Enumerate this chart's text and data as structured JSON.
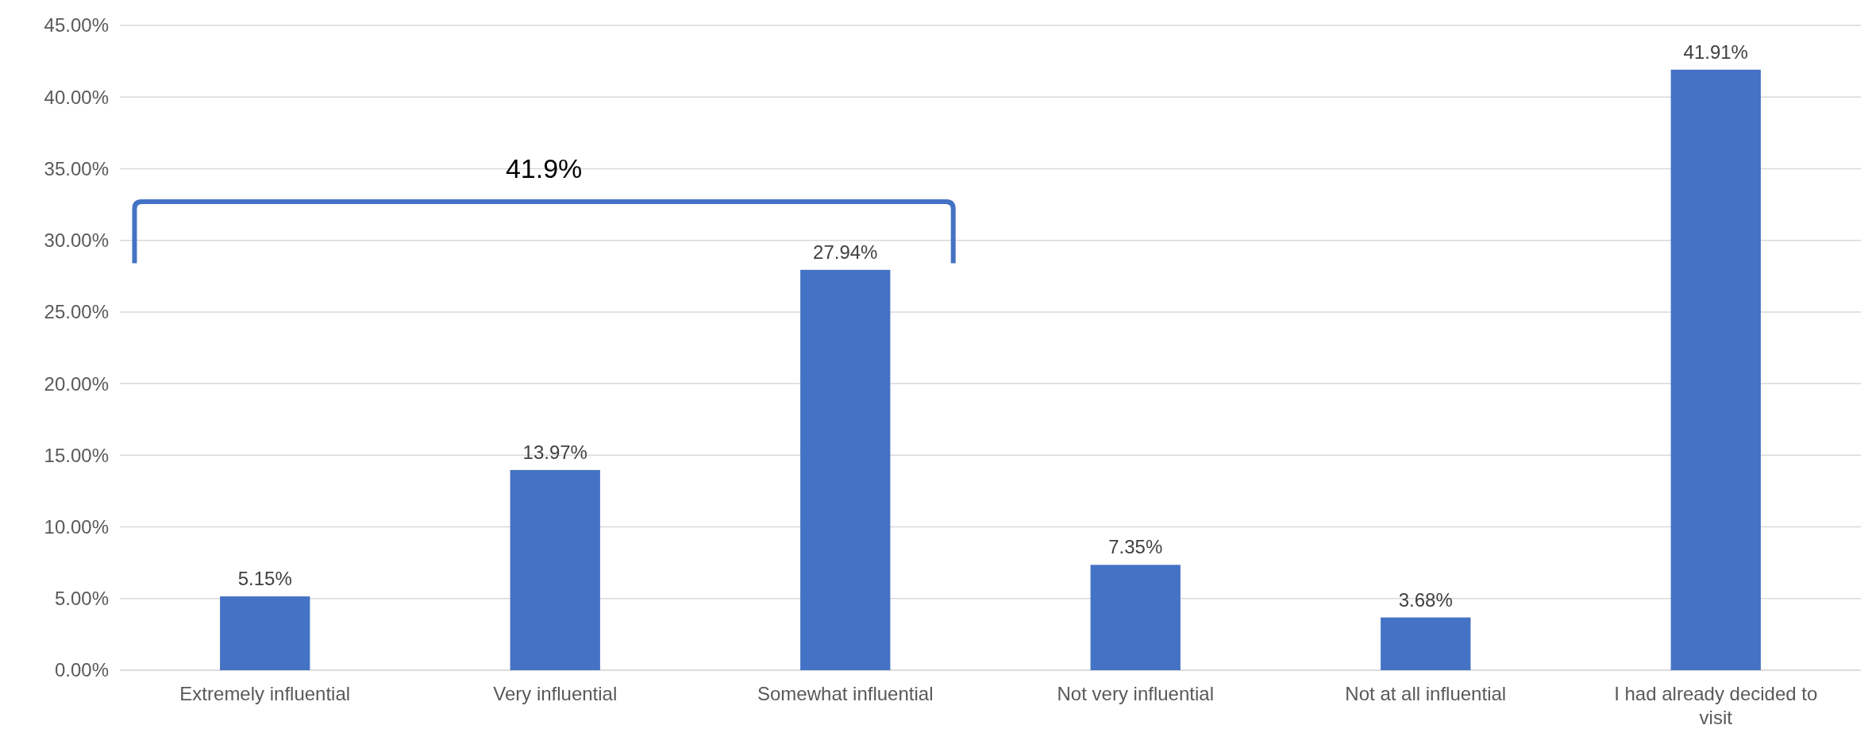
{
  "chart_data": {
    "type": "bar",
    "categories": [
      "Extremely influential",
      "Very influential",
      "Somewhat influential",
      "Not very influential",
      "Not at all influential",
      "I had already decided to visit"
    ],
    "values": [
      5.15,
      13.97,
      27.94,
      7.35,
      3.68,
      41.91
    ],
    "value_labels": [
      "5.15%",
      "13.97%",
      "27.94%",
      "7.35%",
      "3.68%",
      "41.91%"
    ],
    "color": "#4472c4",
    "ylim": [
      0,
      45
    ],
    "yticks": [
      {
        "value": 0,
        "label": "0.00%"
      },
      {
        "value": 5,
        "label": "5.00%"
      },
      {
        "value": 10,
        "label": "10.00%"
      },
      {
        "value": 15,
        "label": "15.00%"
      },
      {
        "value": 20,
        "label": "20.00%"
      },
      {
        "value": 25,
        "label": "25.00%"
      },
      {
        "value": 30,
        "label": "30.00%"
      },
      {
        "value": 35,
        "label": "35.00%"
      },
      {
        "value": 40,
        "label": "40.00%"
      },
      {
        "value": 45,
        "label": "45.00%"
      }
    ],
    "grid": "y",
    "annotations": [
      "41.9%"
    ]
  }
}
